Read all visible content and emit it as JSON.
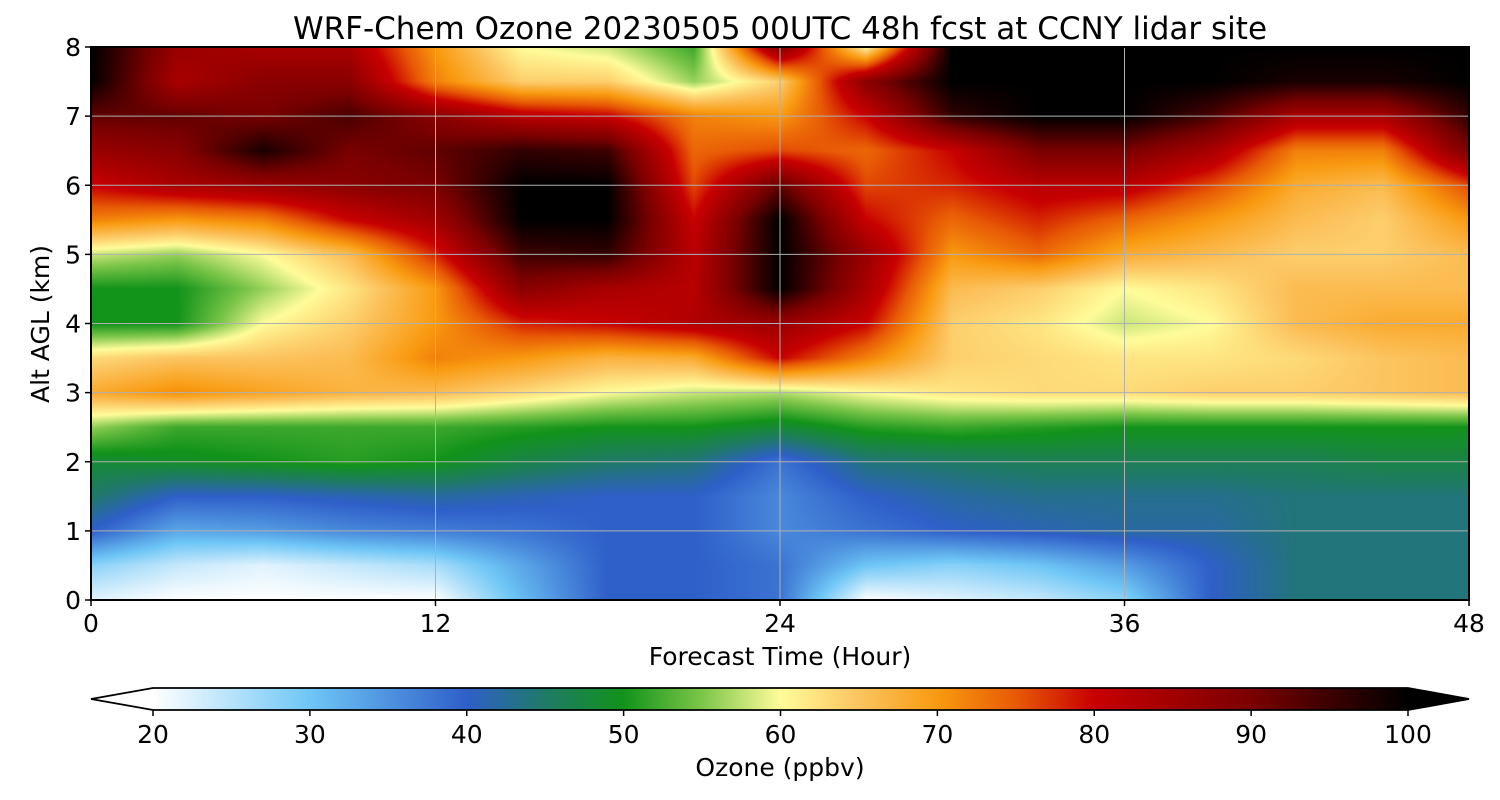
{
  "chart_data": {
    "type": "heatmap",
    "title": "WRF-Chem Ozone  20230505 00UTC 48h fcst at CCNY lidar site",
    "xlabel": "Forecast Time (Hour)",
    "ylabel": "Alt AGL (km)",
    "xlim": [
      0,
      48
    ],
    "ylim": [
      0,
      8
    ],
    "xticks": [
      "0",
      "12",
      "24",
      "36",
      "48"
    ],
    "xtick_values": [
      0,
      12,
      24,
      36,
      48
    ],
    "yticks": [
      "0",
      "1",
      "2",
      "3",
      "4",
      "5",
      "6",
      "7",
      "8"
    ],
    "ytick_values": [
      0,
      1,
      2,
      3,
      4,
      5,
      6,
      7,
      8
    ],
    "grid": true,
    "colorbar": {
      "label": "Ozone  (ppbv)",
      "orientation": "horizontal",
      "placement": "bottom",
      "min": 20,
      "max": 100,
      "extend": "both",
      "ticks": [
        "20",
        "30",
        "40",
        "50",
        "60",
        "70",
        "80",
        "90",
        "100"
      ],
      "tick_values": [
        20,
        30,
        40,
        50,
        60,
        70,
        80,
        90,
        100
      ],
      "color_stops": [
        {
          "v": 20,
          "c": "#ffffff"
        },
        {
          "v": 30,
          "c": "#6ec6f6"
        },
        {
          "v": 40,
          "c": "#2f5fc9"
        },
        {
          "v": 45,
          "c": "#1f7a66"
        },
        {
          "v": 50,
          "c": "#12931a"
        },
        {
          "v": 55,
          "c": "#7cc649"
        },
        {
          "v": 60,
          "c": "#fffc9a"
        },
        {
          "v": 65,
          "c": "#fcc460"
        },
        {
          "v": 70,
          "c": "#f99a10"
        },
        {
          "v": 75,
          "c": "#e85a05"
        },
        {
          "v": 80,
          "c": "#c80000"
        },
        {
          "v": 90,
          "c": "#7a0000"
        },
        {
          "v": 100,
          "c": "#000000"
        }
      ]
    },
    "x_hours": [
      0,
      3,
      6,
      9,
      12,
      15,
      18,
      21,
      24,
      27,
      30,
      33,
      36,
      39,
      42,
      45,
      48
    ],
    "z_km": [
      0,
      0.5,
      1,
      1.5,
      2,
      2.5,
      3,
      3.5,
      4,
      4.5,
      5,
      5.5,
      6,
      6.5,
      7,
      7.5,
      8
    ],
    "ozone_ppbv": [
      [
        22,
        20,
        20,
        20,
        20,
        31,
        40,
        40,
        38,
        20,
        22,
        24,
        28,
        40,
        44,
        44,
        44
      ],
      [
        28,
        24,
        22,
        24,
        26,
        33,
        40,
        40,
        38,
        30,
        28,
        30,
        34,
        40,
        44,
        44,
        44
      ],
      [
        40,
        33,
        34,
        36,
        37,
        38,
        40,
        40,
        36,
        38,
        40,
        41,
        42,
        42,
        44,
        44,
        44
      ],
      [
        45,
        40,
        40,
        41,
        42,
        41,
        40,
        40,
        36,
        40,
        42,
        43,
        43,
        43,
        44,
        44,
        44
      ],
      [
        48,
        49,
        50,
        51,
        50,
        47,
        45,
        44,
        38,
        44,
        45,
        46,
        46,
        46,
        46,
        47,
        47
      ],
      [
        56,
        52,
        52,
        52,
        52,
        51,
        50,
        50,
        48,
        51,
        52,
        51,
        50,
        50,
        50,
        50,
        50
      ],
      [
        68,
        71,
        69,
        67,
        66,
        63,
        60,
        58,
        57,
        60,
        62,
        63,
        63,
        64,
        64,
        65,
        66
      ],
      [
        63,
        65,
        65,
        66,
        72,
        70,
        67,
        68,
        80,
        72,
        64,
        63,
        62,
        62,
        63,
        65,
        66
      ],
      [
        50,
        50,
        60,
        64,
        70,
        78,
        80,
        83,
        86,
        80,
        64,
        62,
        58,
        60,
        66,
        68,
        68
      ],
      [
        50,
        50,
        56,
        62,
        70,
        88,
        84,
        82,
        100,
        84,
        66,
        64,
        60,
        62,
        66,
        66,
        66
      ],
      [
        58,
        56,
        60,
        66,
        78,
        95,
        96,
        82,
        100,
        86,
        70,
        74,
        68,
        66,
        64,
        64,
        66
      ],
      [
        72,
        70,
        72,
        80,
        85,
        100,
        100,
        80,
        100,
        80,
        74,
        78,
        74,
        70,
        66,
        64,
        70
      ],
      [
        80,
        84,
        86,
        88,
        90,
        100,
        100,
        76,
        92,
        76,
        78,
        82,
        82,
        76,
        68,
        66,
        76
      ],
      [
        86,
        88,
        98,
        90,
        92,
        96,
        95,
        74,
        76,
        74,
        80,
        90,
        90,
        84,
        72,
        72,
        90
      ],
      [
        92,
        92,
        90,
        94,
        88,
        82,
        80,
        72,
        70,
        80,
        96,
        100,
        100,
        94,
        84,
        84,
        96
      ],
      [
        100,
        84,
        88,
        88,
        72,
        64,
        64,
        56,
        64,
        88,
        100,
        100,
        100,
        100,
        98,
        98,
        100
      ],
      [
        100,
        86,
        84,
        84,
        70,
        60,
        58,
        52,
        90,
        60,
        100,
        100,
        100,
        100,
        100,
        100,
        100
      ]
    ]
  }
}
